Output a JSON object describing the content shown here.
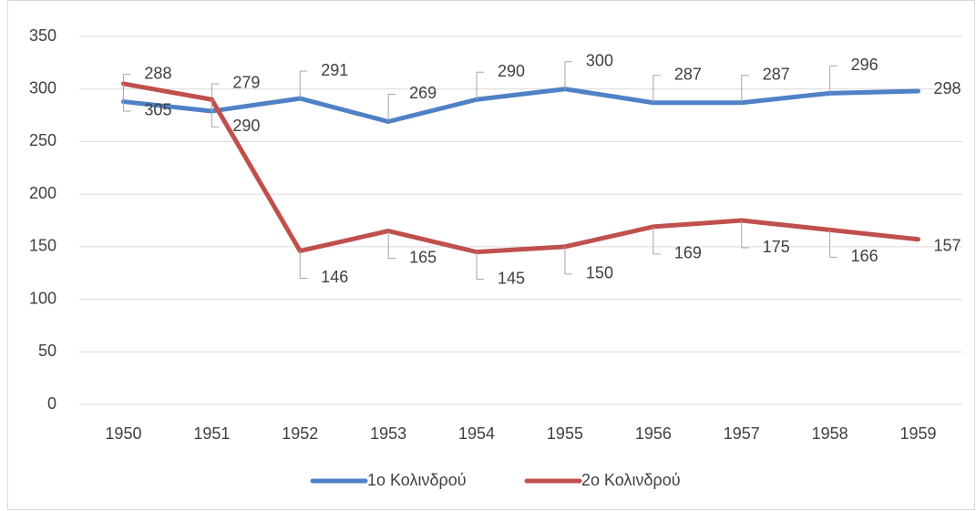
{
  "chart_data": {
    "type": "line",
    "categories": [
      "1950",
      "1951",
      "1952",
      "1953",
      "1954",
      "1955",
      "1956",
      "1957",
      "1958",
      "1959"
    ],
    "series": [
      {
        "name": "1ο Κολινδρού",
        "color": "#4f81c7",
        "values": [
          288,
          279,
          291,
          269,
          290,
          300,
          287,
          287,
          296,
          298
        ]
      },
      {
        "name": "2ο Κολινδρού",
        "color": "#c0504d",
        "values": [
          305,
          290,
          146,
          165,
          145,
          150,
          169,
          175,
          166,
          157
        ]
      }
    ],
    "ylim": [
      0,
      350
    ],
    "yticks": [
      0,
      50,
      100,
      150,
      200,
      250,
      300,
      350
    ],
    "grid": true,
    "legend": "bottom"
  }
}
